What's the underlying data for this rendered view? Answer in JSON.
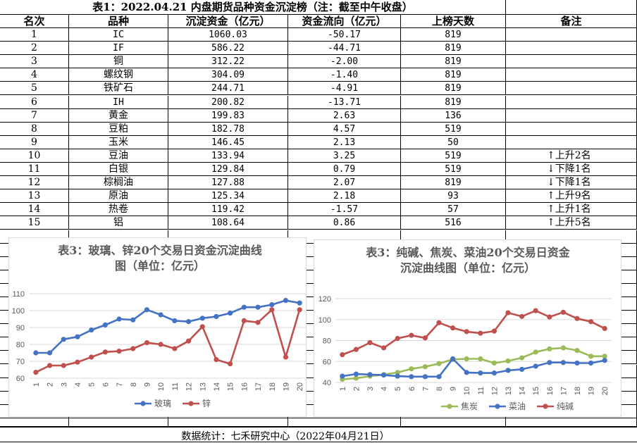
{
  "table": {
    "title": "表1：2022.04.21 内盘期货品种资金沉淀榜（注：截至中午收盘）",
    "headers": [
      "名次",
      "品种",
      "沉淀资金（亿元）",
      "资金流向（亿元）",
      "上榜天数",
      "备注"
    ],
    "rows": [
      [
        "1",
        "IC",
        "1060.03",
        "-50.17",
        "819",
        ""
      ],
      [
        "2",
        "IF",
        "586.22",
        "-44.71",
        "819",
        ""
      ],
      [
        "3",
        "铜",
        "312.22",
        "-2.00",
        "819",
        ""
      ],
      [
        "4",
        "螺纹钢",
        "304.09",
        "-1.40",
        "819",
        ""
      ],
      [
        "5",
        "铁矿石",
        "244.71",
        "-4.91",
        "819",
        ""
      ],
      [
        "6",
        "IH",
        "200.82",
        "-13.71",
        "819",
        ""
      ],
      [
        "7",
        "黄金",
        "199.83",
        "2.63",
        "136",
        ""
      ],
      [
        "8",
        "豆粕",
        "182.78",
        "4.57",
        "519",
        ""
      ],
      [
        "9",
        "玉米",
        "146.45",
        "2.13",
        "50",
        ""
      ],
      [
        "10",
        "豆油",
        "133.94",
        "3.25",
        "519",
        "↑上升2名"
      ],
      [
        "11",
        "白银",
        "129.84",
        "0.79",
        "519",
        "↓下降1名"
      ],
      [
        "12",
        "棕榈油",
        "127.88",
        "2.07",
        "819",
        "↓下降1名"
      ],
      [
        "13",
        "原油",
        "125.34",
        "2.18",
        "93",
        "↑上升9名"
      ],
      [
        "14",
        "热卷",
        "119.42",
        "-1.57",
        "57",
        "↑上升1名"
      ],
      [
        "15",
        "铝",
        "108.64",
        "0.86",
        "516",
        "↑上升5名"
      ]
    ]
  },
  "footer": "数据统计：七禾研究中心（2022年04月21日）",
  "chart_data": [
    {
      "type": "line",
      "title_lines": [
        "表3：玻璃、锌20个交易日资金沉淀曲线",
        "图（单位：亿元）"
      ],
      "x": [
        "1",
        "2",
        "3",
        "4",
        "5",
        "6",
        "7",
        "8",
        "9",
        "10",
        "11",
        "12",
        "13",
        "14",
        "15",
        "16",
        "17",
        "18",
        "19",
        "20"
      ],
      "ylim": [
        60,
        110
      ],
      "yticks": [
        60,
        70,
        80,
        90,
        100,
        110
      ],
      "grid": true,
      "legend_position": "bottom",
      "series": [
        {
          "name": "玻璃",
          "color": "#4472c4",
          "values": [
            75,
            75,
            83,
            84.5,
            88.5,
            91.5,
            95,
            94.5,
            100.5,
            97.5,
            94,
            93.5,
            95.5,
            96.5,
            98.5,
            102,
            102,
            103.5,
            106,
            104.5
          ]
        },
        {
          "name": "锌",
          "color": "#c0504d",
          "values": [
            63.5,
            67.5,
            67.5,
            69.5,
            72.5,
            75.5,
            76,
            77.5,
            81,
            80,
            77.5,
            82,
            90.5,
            71,
            68.5,
            94,
            93,
            100.5,
            72.5,
            100.5
          ]
        }
      ]
    },
    {
      "type": "line",
      "title_lines": [
        "表3：纯碱、焦炭、菜油20个交易日资金",
        "沉淀曲线图（单位：亿元）"
      ],
      "x": [
        "1",
        "2",
        "3",
        "4",
        "5",
        "6",
        "7",
        "8",
        "9",
        "10",
        "11",
        "12",
        "13",
        "14",
        "15",
        "16",
        "17",
        "18",
        "19",
        "20"
      ],
      "ylim": [
        40,
        120
      ],
      "yticks": [
        40,
        60,
        80,
        100,
        120
      ],
      "grid": true,
      "legend_position": "bottom",
      "series": [
        {
          "name": "焦炭",
          "color": "#9bbb59",
          "values": [
            43,
            44,
            46,
            47.5,
            49.5,
            53,
            55,
            58,
            62,
            62.5,
            62.5,
            58.5,
            60.5,
            63.5,
            69,
            72,
            73,
            70.5,
            65,
            65
          ]
        },
        {
          "name": "菜油",
          "color": "#4472c4",
          "values": [
            46,
            48,
            47.5,
            47,
            46,
            45.5,
            45.5,
            45.5,
            62.5,
            49.5,
            49,
            49,
            51.5,
            52.5,
            55.5,
            59,
            59,
            58.5,
            58.5,
            61
          ]
        },
        {
          "name": "纯碱",
          "color": "#c0504d",
          "values": [
            66.5,
            71.5,
            78,
            73,
            82,
            85,
            82.5,
            97,
            92,
            88.5,
            87,
            89,
            106.5,
            103,
            108.5,
            102.5,
            107,
            101,
            98,
            91.5
          ]
        }
      ]
    }
  ]
}
